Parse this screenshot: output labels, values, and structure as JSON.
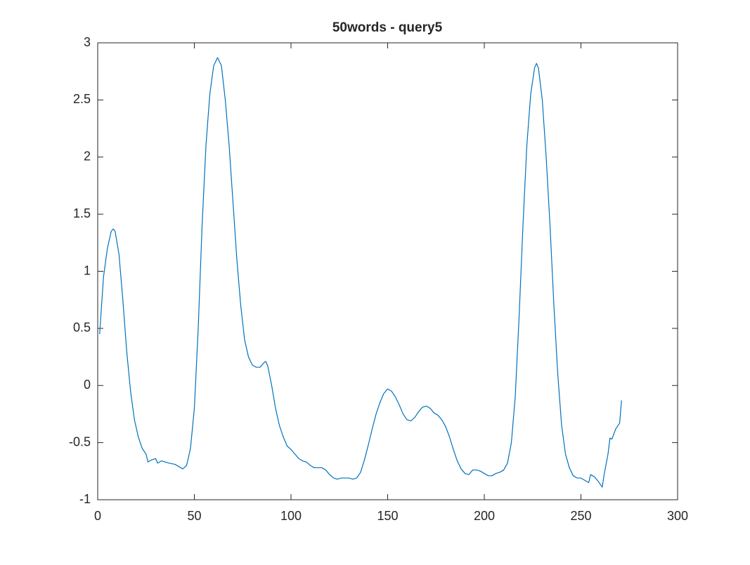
{
  "chart_data": {
    "type": "line",
    "title": "50words - query5",
    "x": [
      1,
      3,
      5,
      7,
      8,
      9,
      11,
      13,
      15,
      17,
      19,
      21,
      23,
      25,
      26,
      28,
      30,
      31,
      33,
      35,
      37,
      40,
      42,
      44,
      46,
      48,
      50,
      52,
      54,
      56,
      58,
      60,
      62,
      64,
      66,
      68,
      70,
      72,
      74,
      76,
      78,
      80,
      82,
      84,
      86,
      87,
      88,
      90,
      92,
      94,
      96,
      98,
      100,
      102,
      104,
      106,
      108,
      110,
      112,
      116,
      118,
      120,
      122,
      124,
      126,
      130,
      132,
      134,
      136,
      138,
      140,
      142,
      144,
      146,
      148,
      150,
      152,
      154,
      156,
      158,
      160,
      162,
      164,
      166,
      168,
      170,
      172,
      174,
      176,
      178,
      180,
      182,
      184,
      186,
      188,
      190,
      192,
      194,
      196,
      198,
      200,
      202,
      204,
      206,
      208,
      210,
      212,
      214,
      216,
      218,
      220,
      222,
      224,
      226,
      227,
      228,
      230,
      232,
      234,
      236,
      238,
      240,
      242,
      244,
      246,
      248,
      250,
      252,
      254,
      255,
      257,
      259,
      261,
      262,
      264,
      265,
      266,
      268,
      270,
      271
    ],
    "series": [
      {
        "color": "#0072bd",
        "values": [
          0.45,
          0.95,
          1.2,
          1.35,
          1.37,
          1.35,
          1.15,
          0.75,
          0.3,
          -0.05,
          -0.3,
          -0.45,
          -0.55,
          -0.6,
          -0.67,
          -0.65,
          -0.64,
          -0.68,
          -0.66,
          -0.67,
          -0.68,
          -0.69,
          -0.71,
          -0.73,
          -0.7,
          -0.55,
          -0.2,
          0.5,
          1.4,
          2.1,
          2.55,
          2.8,
          2.87,
          2.8,
          2.5,
          2.1,
          1.6,
          1.1,
          0.7,
          0.4,
          0.25,
          0.18,
          0.16,
          0.16,
          0.2,
          0.21,
          0.17,
          0.0,
          -0.2,
          -0.35,
          -0.45,
          -0.53,
          -0.56,
          -0.6,
          -0.64,
          -0.66,
          -0.67,
          -0.7,
          -0.72,
          -0.72,
          -0.74,
          -0.78,
          -0.81,
          -0.82,
          -0.81,
          -0.81,
          -0.82,
          -0.81,
          -0.76,
          -0.65,
          -0.52,
          -0.38,
          -0.25,
          -0.15,
          -0.07,
          -0.03,
          -0.05,
          -0.1,
          -0.17,
          -0.25,
          -0.3,
          -0.31,
          -0.28,
          -0.23,
          -0.19,
          -0.18,
          -0.2,
          -0.24,
          -0.26,
          -0.3,
          -0.36,
          -0.45,
          -0.56,
          -0.66,
          -0.73,
          -0.77,
          -0.78,
          -0.74,
          -0.74,
          -0.75,
          -0.77,
          -0.79,
          -0.79,
          -0.77,
          -0.76,
          -0.74,
          -0.68,
          -0.5,
          -0.1,
          0.6,
          1.4,
          2.1,
          2.55,
          2.78,
          2.82,
          2.78,
          2.5,
          2.0,
          1.4,
          0.7,
          0.1,
          -0.35,
          -0.6,
          -0.72,
          -0.79,
          -0.81,
          -0.81,
          -0.83,
          -0.85,
          -0.78,
          -0.8,
          -0.84,
          -0.89,
          -0.78,
          -0.6,
          -0.46,
          -0.47,
          -0.38,
          -0.33,
          -0.13
        ]
      }
    ],
    "xlim": [
      0,
      300
    ],
    "xticks": [
      0,
      50,
      100,
      150,
      200,
      250,
      300
    ],
    "ylim": [
      -1,
      3
    ],
    "yticks": [
      -1,
      {
        "value": -0.5,
        "label": "-0.5"
      },
      0,
      0.5,
      1,
      1.5,
      2,
      2.5,
      3
    ]
  }
}
